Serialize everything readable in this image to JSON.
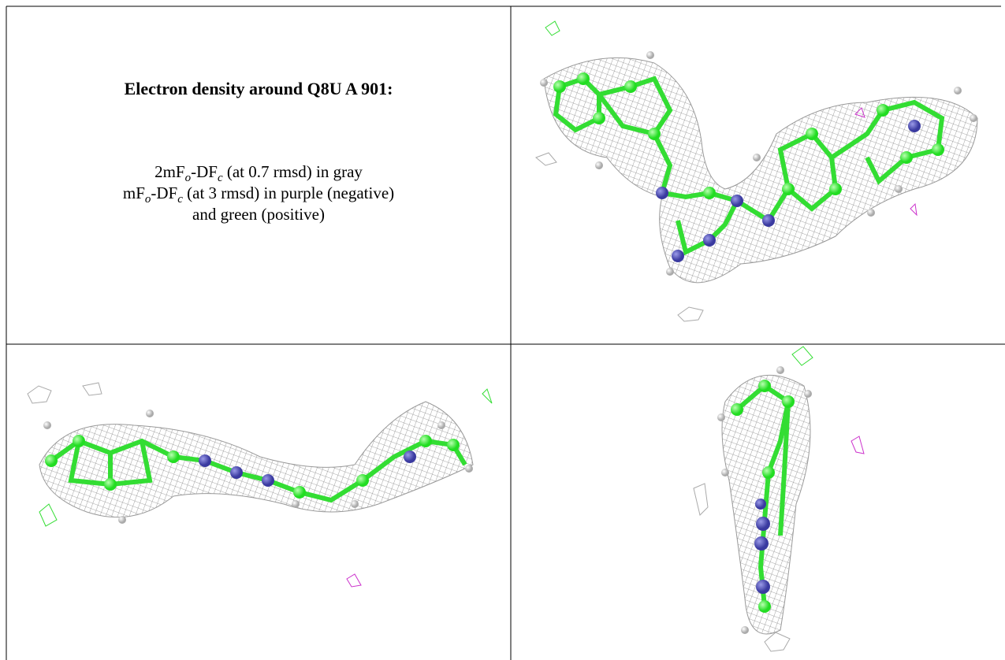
{
  "figure": {
    "title": "Electron density around Q8U A 901:",
    "legend": [
      [
        {
          "text": "2mF"
        },
        {
          "sub": "o"
        },
        {
          "text": "-DF"
        },
        {
          "sub": "c"
        },
        {
          "text": " (at 0.7 rmsd) in gray"
        }
      ],
      [
        {
          "text": "mF"
        },
        {
          "sub": "o"
        },
        {
          "text": "-DF"
        },
        {
          "sub": "c"
        },
        {
          "text": " (at 3 rmsd) in purple (negative)"
        }
      ],
      [
        {
          "text": "and green (positive)"
        }
      ]
    ]
  }
}
